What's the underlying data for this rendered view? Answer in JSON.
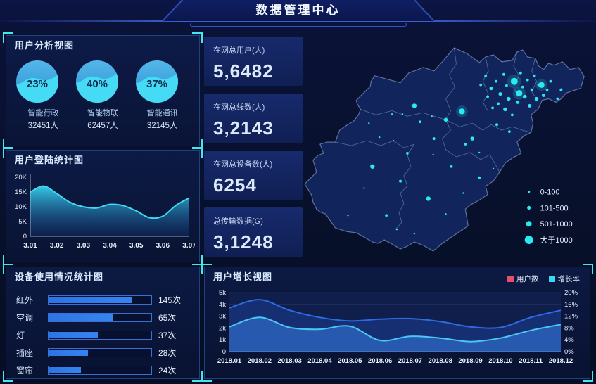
{
  "header": {
    "title": "数据管理中心"
  },
  "panels": {
    "user_analysis": {
      "title": "用户分析视图",
      "gauges": [
        {
          "percent": "23%",
          "value": 23,
          "label": "智能行政",
          "count": "32451人"
        },
        {
          "percent": "40%",
          "value": 40,
          "label": "智能物联",
          "count": "62457人"
        },
        {
          "percent": "37%",
          "value": 37,
          "label": "智能通讯",
          "count": "32145人"
        }
      ]
    },
    "login_stats": {
      "title": "用户登陆统计图"
    },
    "device_usage": {
      "title": "设备使用情况统计图"
    },
    "user_growth": {
      "title": "用户增长视图"
    }
  },
  "stats": [
    {
      "label": "在网总用户(人)",
      "value": "5,6482"
    },
    {
      "label": "在网总线数(人)",
      "value": "3,2143"
    },
    {
      "label": "在网总设备数(人)",
      "value": "6254"
    },
    {
      "label": "总传输数据(G)",
      "value": "3,1248"
    }
  ],
  "chart_data": [
    {
      "id": "login_stats",
      "type": "area",
      "title": "用户登陆统计图",
      "x": [
        3.01,
        3.015,
        3.02,
        3.025,
        3.03,
        3.035,
        3.04,
        3.045,
        3.05,
        3.055,
        3.06,
        3.065,
        3.07
      ],
      "values_k": [
        15,
        17,
        14.5,
        11.5,
        10,
        9.6,
        10.8,
        10.4,
        8.6,
        6.3,
        6.8,
        10.5,
        13
      ],
      "xticks": [
        "3.01",
        "3.02",
        "3.03",
        "3.04",
        "3.05",
        "3.06",
        "3.07"
      ],
      "yticks": [
        "0",
        "5K",
        "10K",
        "15K",
        "20K"
      ],
      "ylim_k": [
        0,
        20
      ],
      "line_color": "#41d8f2",
      "fill_top": "#38d4f0",
      "fill_bottom": "#15387e"
    },
    {
      "id": "device_usage",
      "type": "bar",
      "title": "设备使用情况统计图",
      "categories": [
        "红外",
        "空调",
        "灯",
        "插座",
        "窗帘"
      ],
      "values": [
        145,
        65,
        37,
        28,
        24
      ],
      "value_labels": [
        "145次",
        "65次",
        "37次",
        "28次",
        "24次"
      ],
      "fill_pct": [
        81,
        62,
        47,
        38,
        31
      ],
      "bar_color": "#2d74e4"
    },
    {
      "id": "user_growth",
      "type": "area",
      "title": "用户增长视图",
      "categories": [
        "2018.01",
        "2018.02",
        "2018.03",
        "2018.04",
        "2018.05",
        "2018.06",
        "2018.07",
        "2018.08",
        "2018.09",
        "2018.10",
        "2018.11",
        "2018.12"
      ],
      "series": [
        {
          "name": "用户数",
          "axis": "left",
          "color": "#2f6ae2",
          "fill": "#18327a",
          "values": [
            3700,
            4400,
            3500,
            2900,
            2600,
            2750,
            2800,
            2550,
            2100,
            2050,
            2900,
            3500
          ]
        },
        {
          "name": "增长率",
          "axis": "right",
          "color": "#4ac6f4",
          "fill": "#2a62b8",
          "values": [
            8.4,
            11.6,
            8.2,
            7.6,
            8.6,
            3.8,
            5.2,
            4.6,
            3.4,
            4.6,
            7.2,
            9.2
          ]
        }
      ],
      "left_ticks": [
        "0",
        "1k",
        "2k",
        "3k",
        "4k",
        "5k"
      ],
      "right_ticks": [
        "0%",
        "4%",
        "8%",
        "12%",
        "16%",
        "20%"
      ],
      "left_lim": [
        0,
        5000
      ],
      "right_lim": [
        0,
        20
      ],
      "legend": [
        {
          "label": "用户数",
          "color": "#e3506a"
        },
        {
          "label": "增长率",
          "color": "#3fd4f0"
        }
      ],
      "legend_position": "top-right",
      "grid": true
    }
  ],
  "map": {
    "dot_color": "#2ae9f2",
    "legend": [
      {
        "label": "0-100",
        "r": 1.6
      },
      {
        "label": "101-500",
        "r": 2.6
      },
      {
        "label": "501-1000",
        "r": 4
      },
      {
        "label": "大于1000",
        "r": 6
      }
    ],
    "points": [
      [
        303,
        70,
        5,
        1
      ],
      [
        310,
        87,
        4.6,
        1
      ],
      [
        342,
        75,
        4.2,
        1
      ],
      [
        228,
        113,
        4.2,
        1
      ],
      [
        160,
        105,
        3.2
      ],
      [
        205,
        125,
        2.8
      ],
      [
        243,
        152,
        2.8
      ],
      [
        100,
        192,
        3.2
      ],
      [
        180,
        238,
        3.2
      ],
      [
        290,
        110,
        2.8
      ],
      [
        318,
        92,
        2.8
      ],
      [
        295,
        95,
        2.8
      ],
      [
        283,
        88,
        2.6
      ],
      [
        335,
        95,
        2.6
      ],
      [
        345,
        90,
        2.5
      ],
      [
        270,
        80,
        2.6
      ],
      [
        325,
        105,
        2.5
      ],
      [
        308,
        100,
        2.4
      ],
      [
        255,
        75,
        1.9
      ],
      [
        262,
        62,
        1.9
      ],
      [
        277,
        70,
        1.9
      ],
      [
        288,
        60,
        2
      ],
      [
        292,
        76,
        1.9
      ],
      [
        312,
        58,
        2
      ],
      [
        315,
        78,
        1.9
      ],
      [
        322,
        68,
        1.9
      ],
      [
        328,
        82,
        1.9
      ],
      [
        332,
        62,
        1.9
      ],
      [
        338,
        75,
        2
      ],
      [
        350,
        82,
        1.9
      ],
      [
        355,
        70,
        1.9
      ],
      [
        365,
        95,
        1.9
      ],
      [
        370,
        82,
        2
      ],
      [
        280,
        102,
        2
      ],
      [
        265,
        92,
        1.9
      ],
      [
        272,
        108,
        1.9
      ],
      [
        300,
        118,
        1.9
      ],
      [
        188,
        152,
        2
      ],
      [
        233,
        160,
        1.9
      ],
      [
        296,
        142,
        1.9
      ],
      [
        278,
        132,
        2
      ],
      [
        213,
        192,
        1.9
      ],
      [
        253,
        208,
        1.9
      ],
      [
        140,
        213,
        2
      ],
      [
        120,
        262,
        1.9
      ],
      [
        168,
        128,
        1.9
      ],
      [
        150,
        173,
        1.9
      ],
      [
        128,
        117,
        1.2
      ],
      [
        143,
        117,
        1.2
      ],
      [
        185,
        120,
        1.2
      ],
      [
        88,
        223,
        1.2
      ],
      [
        65,
        262,
        1.2
      ],
      [
        110,
        150,
        1.2
      ],
      [
        95,
        130,
        1.2
      ],
      [
        230,
        230,
        1.2
      ],
      [
        205,
        260,
        1.2
      ],
      [
        160,
        288,
        1.2
      ],
      [
        135,
        282,
        1.2
      ],
      [
        253,
        172,
        1.2
      ],
      [
        187,
        175,
        1.2
      ],
      [
        273,
        195,
        1.2
      ],
      [
        130,
        155,
        1.2
      ]
    ]
  }
}
